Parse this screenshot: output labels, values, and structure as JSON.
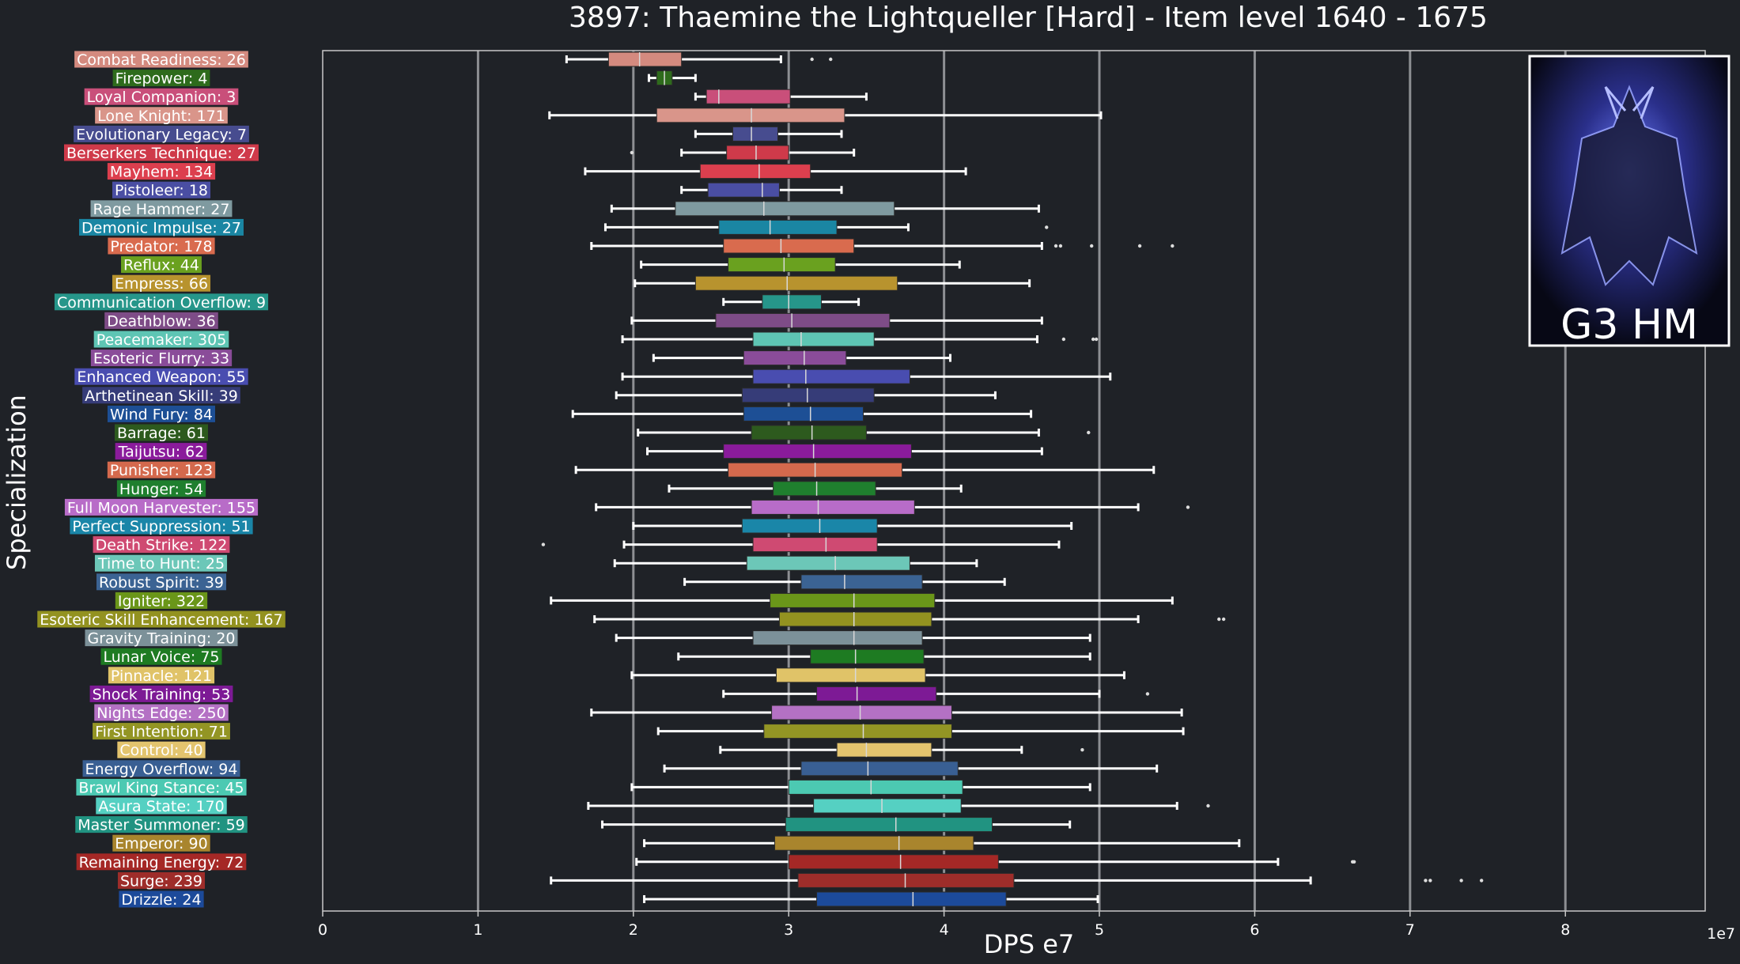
{
  "chart_data": {
    "type": "boxplot",
    "title": "3897: Thaemine the Lightqueller [Hard] - Item level 1640 - 1675",
    "xlabel": "DPS e7",
    "ylabel": "Specialization",
    "x_offset_label": "1e7",
    "xlim": [
      0,
      8.9
    ],
    "xticks": [
      0,
      1,
      2,
      3,
      4,
      5,
      6,
      7,
      8
    ],
    "grid": "vertical",
    "inset_label": "G3 HM",
    "series": [
      {
        "label": "Combat Readiness: 26",
        "color": "#d48a7f",
        "whislo": 1.57,
        "q1": 1.84,
        "med": 2.04,
        "q3": 2.31,
        "whishi": 2.95,
        "fliers": [
          3.15,
          3.27
        ]
      },
      {
        "label": "Firepower: 4",
        "color": "#2e6b1c",
        "whislo": 2.1,
        "q1": 2.15,
        "med": 2.2,
        "q3": 2.25,
        "whishi": 2.4,
        "fliers": []
      },
      {
        "label": "Loyal Companion: 3",
        "color": "#c94f7a",
        "whislo": 2.4,
        "q1": 2.47,
        "med": 2.55,
        "q3": 3.01,
        "whishi": 3.5,
        "fliers": []
      },
      {
        "label": "Lone Knight: 171",
        "color": "#d9958a",
        "whislo": 1.46,
        "q1": 2.15,
        "med": 2.76,
        "q3": 3.36,
        "whishi": 5.01,
        "fliers": []
      },
      {
        "label": "Evolutionary Legacy: 7",
        "color": "#474c8f",
        "whislo": 2.4,
        "q1": 2.64,
        "med": 2.76,
        "q3": 2.93,
        "whishi": 3.34,
        "fliers": []
      },
      {
        "label": "Berserkers Technique: 27",
        "color": "#cf3a4a",
        "whislo": 2.31,
        "q1": 2.6,
        "med": 2.79,
        "q3": 3.0,
        "whishi": 3.42,
        "fliers": [
          1.99
        ]
      },
      {
        "label": "Mayhem: 134",
        "color": "#dc3f4e",
        "whislo": 1.69,
        "q1": 2.43,
        "med": 2.81,
        "q3": 3.14,
        "whishi": 4.14,
        "fliers": []
      },
      {
        "label": "Pistoleer: 18",
        "color": "#4a4ea3",
        "whislo": 2.31,
        "q1": 2.48,
        "med": 2.83,
        "q3": 2.94,
        "whishi": 3.34,
        "fliers": []
      },
      {
        "label": "Rage Hammer: 27",
        "color": "#7f9aa0",
        "whislo": 1.86,
        "q1": 2.27,
        "med": 2.84,
        "q3": 3.68,
        "whishi": 4.61,
        "fliers": []
      },
      {
        "label": "Demonic Impulse: 27",
        "color": "#1a86a3",
        "whislo": 1.82,
        "q1": 2.55,
        "med": 2.88,
        "q3": 3.31,
        "whishi": 3.77,
        "fliers": [
          4.66
        ]
      },
      {
        "label": "Predator: 178",
        "color": "#d96b4e",
        "whislo": 1.73,
        "q1": 2.58,
        "med": 2.95,
        "q3": 3.42,
        "whishi": 4.63,
        "fliers": [
          4.72,
          4.75,
          4.95,
          5.26,
          5.47
        ]
      },
      {
        "label": "Reflux: 44",
        "color": "#6aa11f",
        "whislo": 2.05,
        "q1": 2.61,
        "med": 2.97,
        "q3": 3.3,
        "whishi": 4.1,
        "fliers": []
      },
      {
        "label": "Empress: 66",
        "color": "#b8932e",
        "whislo": 2.01,
        "q1": 2.4,
        "med": 2.99,
        "q3": 3.7,
        "whishi": 4.55,
        "fliers": []
      },
      {
        "label": "Communication Overflow: 9",
        "color": "#26968a",
        "whislo": 2.58,
        "q1": 2.83,
        "med": 3.0,
        "q3": 3.21,
        "whishi": 3.45,
        "fliers": []
      },
      {
        "label": "Deathblow: 36",
        "color": "#7e4c87",
        "whislo": 1.99,
        "q1": 2.53,
        "med": 3.02,
        "q3": 3.65,
        "whishi": 4.63,
        "fliers": []
      },
      {
        "label": "Peacemaker: 305",
        "color": "#5ec5b4",
        "whislo": 1.93,
        "q1": 2.77,
        "med": 3.08,
        "q3": 3.55,
        "whishi": 4.6,
        "fliers": [
          4.77,
          4.96,
          4.98
        ]
      },
      {
        "label": "Esoteric Flurry: 33",
        "color": "#8a4c99",
        "whislo": 2.13,
        "q1": 2.71,
        "med": 3.1,
        "q3": 3.37,
        "whishi": 4.04,
        "fliers": []
      },
      {
        "label": "Enhanced Weapon: 55",
        "color": "#494db0",
        "whislo": 1.93,
        "q1": 2.77,
        "med": 3.11,
        "q3": 3.78,
        "whishi": 5.07,
        "fliers": []
      },
      {
        "label": "Arthetinean Skill: 39",
        "color": "#363c78",
        "whislo": 1.89,
        "q1": 2.7,
        "med": 3.12,
        "q3": 3.55,
        "whishi": 4.33,
        "fliers": []
      },
      {
        "label": "Wind Fury: 84",
        "color": "#1d4f95",
        "whislo": 1.61,
        "q1": 2.71,
        "med": 3.14,
        "q3": 3.48,
        "whishi": 4.56,
        "fliers": []
      },
      {
        "label": "Barrage: 61",
        "color": "#2d5a1e",
        "whislo": 2.03,
        "q1": 2.76,
        "med": 3.15,
        "q3": 3.5,
        "whishi": 4.61,
        "fliers": [
          4.93
        ]
      },
      {
        "label": "Taijutsu: 62",
        "color": "#8a1b9b",
        "whislo": 2.09,
        "q1": 2.58,
        "med": 3.16,
        "q3": 3.79,
        "whishi": 4.63,
        "fliers": []
      },
      {
        "label": "Punisher: 123",
        "color": "#d4694d",
        "whislo": 1.63,
        "q1": 2.61,
        "med": 3.17,
        "q3": 3.73,
        "whishi": 5.35,
        "fliers": []
      },
      {
        "label": "Hunger: 54",
        "color": "#1f7f2e",
        "whislo": 2.23,
        "q1": 2.9,
        "med": 3.18,
        "q3": 3.56,
        "whishi": 4.11,
        "fliers": []
      },
      {
        "label": "Full Moon Harvester: 155",
        "color": "#b86cc8",
        "whislo": 1.76,
        "q1": 2.76,
        "med": 3.19,
        "q3": 3.81,
        "whishi": 5.25,
        "fliers": [
          5.57
        ]
      },
      {
        "label": "Perfect Suppression: 51",
        "color": "#1a86a8",
        "whislo": 2.0,
        "q1": 2.7,
        "med": 3.2,
        "q3": 3.57,
        "whishi": 4.82,
        "fliers": []
      },
      {
        "label": "Death Strike: 122",
        "color": "#cf4a72",
        "whislo": 1.94,
        "q1": 2.77,
        "med": 3.24,
        "q3": 3.57,
        "whishi": 4.74,
        "fliers": [
          1.42
        ]
      },
      {
        "label": "Time to Hunt: 25",
        "color": "#6cc7b8",
        "whislo": 1.88,
        "q1": 2.73,
        "med": 3.3,
        "q3": 3.78,
        "whishi": 4.21,
        "fliers": []
      },
      {
        "label": "Robust Spirit: 39",
        "color": "#3b6393",
        "whislo": 2.33,
        "q1": 3.08,
        "med": 3.36,
        "q3": 3.86,
        "whishi": 4.39,
        "fliers": []
      },
      {
        "label": "Igniter: 322",
        "color": "#6a9619",
        "whislo": 1.47,
        "q1": 2.88,
        "med": 3.42,
        "q3": 3.94,
        "whishi": 5.47,
        "fliers": []
      },
      {
        "label": "Esoteric Skill Enhancement: 167",
        "color": "#939220",
        "whislo": 1.75,
        "q1": 2.94,
        "med": 3.42,
        "q3": 3.92,
        "whishi": 5.25,
        "fliers": [
          5.77,
          5.8
        ]
      },
      {
        "label": "Gravity Training: 20",
        "color": "#7c9199",
        "whislo": 1.89,
        "q1": 2.77,
        "med": 3.42,
        "q3": 3.86,
        "whishi": 4.94,
        "fliers": []
      },
      {
        "label": "Lunar Voice: 75",
        "color": "#1e7b22",
        "whislo": 2.29,
        "q1": 3.14,
        "med": 3.43,
        "q3": 3.87,
        "whishi": 4.94,
        "fliers": []
      },
      {
        "label": "Pinnacle: 121",
        "color": "#e0c368",
        "whislo": 1.99,
        "q1": 2.92,
        "med": 3.43,
        "q3": 3.88,
        "whishi": 5.16,
        "fliers": []
      },
      {
        "label": "Shock Training: 53",
        "color": "#7d1a95",
        "whislo": 2.58,
        "q1": 3.18,
        "med": 3.44,
        "q3": 3.95,
        "whishi": 5.0,
        "fliers": [
          5.31
        ]
      },
      {
        "label": "Nights Edge: 250",
        "color": "#b471c4",
        "whislo": 1.73,
        "q1": 2.89,
        "med": 3.46,
        "q3": 4.05,
        "whishi": 5.53,
        "fliers": []
      },
      {
        "label": "First Intention: 71",
        "color": "#939524",
        "whislo": 2.16,
        "q1": 2.84,
        "med": 3.48,
        "q3": 4.05,
        "whishi": 5.54,
        "fliers": []
      },
      {
        "label": "Control: 40",
        "color": "#e3c46e",
        "whislo": 2.56,
        "q1": 3.31,
        "med": 3.5,
        "q3": 3.92,
        "whishi": 4.5,
        "fliers": [
          4.89
        ]
      },
      {
        "label": "Energy Overflow: 94",
        "color": "#395f93",
        "whislo": 2.2,
        "q1": 3.08,
        "med": 3.51,
        "q3": 4.09,
        "whishi": 5.37,
        "fliers": []
      },
      {
        "label": "Brawl King Stance: 45",
        "color": "#4cc9b2",
        "whislo": 1.99,
        "q1": 3.0,
        "med": 3.53,
        "q3": 4.12,
        "whishi": 4.94,
        "fliers": []
      },
      {
        "label": "Asura State: 170",
        "color": "#55d0c2",
        "whislo": 1.71,
        "q1": 3.16,
        "med": 3.6,
        "q3": 4.11,
        "whishi": 5.5,
        "fliers": [
          5.7
        ]
      },
      {
        "label": "Master Summoner: 59",
        "color": "#219381",
        "whislo": 1.8,
        "q1": 2.98,
        "med": 3.69,
        "q3": 4.31,
        "whishi": 4.81,
        "fliers": []
      },
      {
        "label": "Emperor: 90",
        "color": "#a9852d",
        "whislo": 2.07,
        "q1": 2.91,
        "med": 3.71,
        "q3": 4.19,
        "whishi": 5.9,
        "fliers": []
      },
      {
        "label": "Remaining Energy: 72",
        "color": "#a52826",
        "whislo": 2.02,
        "q1": 3.0,
        "med": 3.72,
        "q3": 4.35,
        "whishi": 6.15,
        "fliers": [
          6.63,
          6.64
        ]
      },
      {
        "label": "Surge: 239",
        "color": "#9e2d2a",
        "whislo": 1.47,
        "q1": 3.06,
        "med": 3.75,
        "q3": 4.45,
        "whishi": 6.36,
        "fliers": [
          7.1,
          7.13,
          7.33,
          7.46
        ]
      },
      {
        "label": "Drizzle: 24",
        "color": "#1c4a9a",
        "whislo": 2.07,
        "q1": 3.18,
        "med": 3.8,
        "q3": 4.4,
        "whishi": 4.99,
        "fliers": []
      }
    ]
  }
}
